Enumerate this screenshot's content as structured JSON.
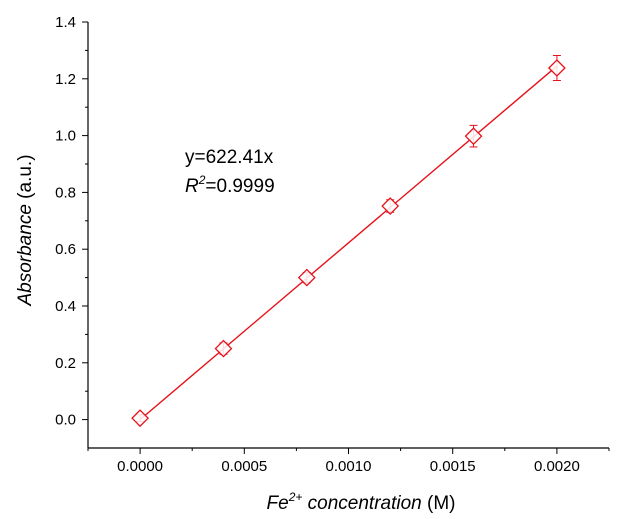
{
  "chart_data": {
    "type": "scatter",
    "title": "",
    "xlabel": {
      "prefix": "Fe",
      "superscript": "2+",
      "italic_rest": " concentration",
      "unit": " (M)"
    },
    "ylabel": {
      "italic": "Absorbance",
      "unit": " (a.u.)"
    },
    "xlim": [
      -0.00025,
      0.00225
    ],
    "ylim": [
      -0.1,
      1.4
    ],
    "xticks": [
      "0.0000",
      "0.0005",
      "0.0010",
      "0.0015",
      "0.0020"
    ],
    "xtick_values": [
      0,
      0.0005,
      0.001,
      0.0015,
      0.002
    ],
    "yticks": [
      "0.0",
      "0.2",
      "0.4",
      "0.6",
      "0.8",
      "1.0",
      "1.2",
      "1.4"
    ],
    "ytick_values": [
      0,
      0.2,
      0.4,
      0.6,
      0.8,
      1.0,
      1.2,
      1.4
    ],
    "grid": false,
    "series": [
      {
        "marker": "open-diamond",
        "color": "#e8101a",
        "x": [
          0,
          0.0004,
          0.0008,
          0.0012,
          0.0016,
          0.002
        ],
        "y": [
          0.005,
          0.25,
          0.5,
          0.752,
          0.998,
          1.238
        ],
        "yerr": [
          0.012,
          0.02,
          0.018,
          0.022,
          0.038,
          0.044
        ]
      }
    ],
    "fit": {
      "slope": 622.41,
      "x_range": [
        0,
        0.002
      ],
      "color": "#e8101a"
    },
    "annotation": {
      "equation": "y=622.41x",
      "r2_symbol": "R",
      "r2_superscript": "2",
      "r2_value": "=0.9999"
    }
  }
}
